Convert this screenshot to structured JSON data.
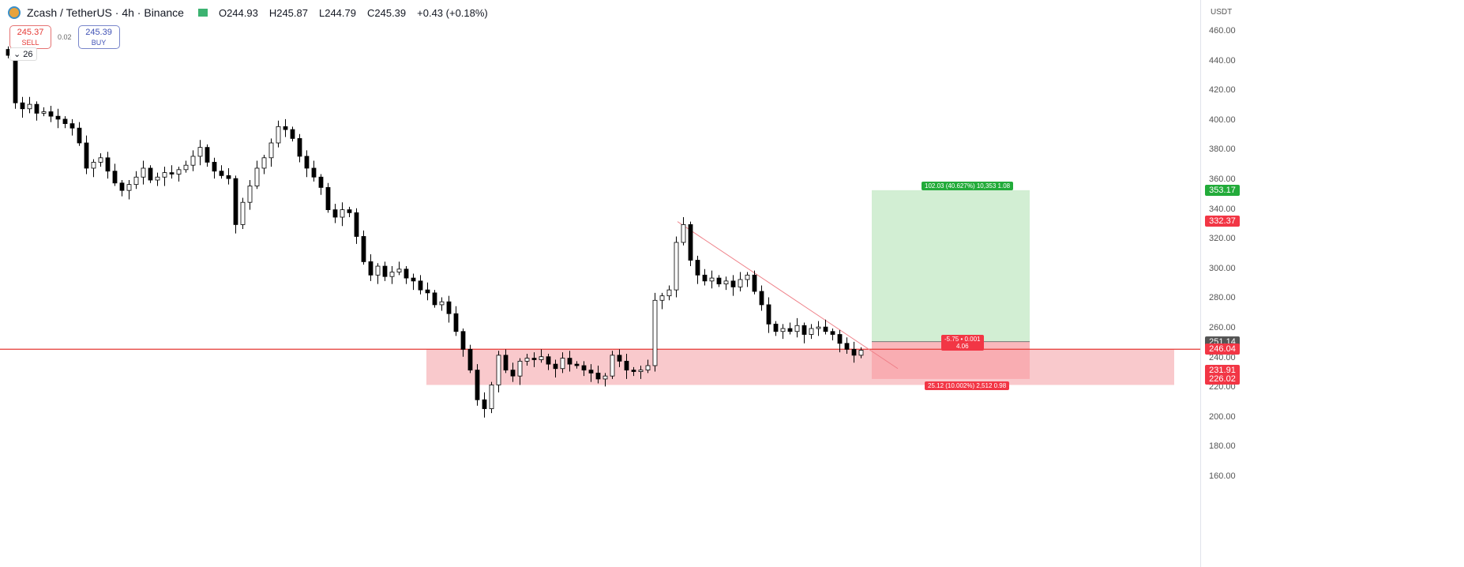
{
  "header": {
    "symbol": "Zcash / TetherUS · 4h · Binance",
    "open": "O244.93",
    "high": "H245.87",
    "low": "L244.79",
    "close": "C245.39",
    "change": "+0.43 (+0.18%)"
  },
  "trade": {
    "sell_price": "245.37",
    "sell_label": "SELL",
    "spread": "0.02",
    "buy_price": "245.39",
    "buy_label": "BUY"
  },
  "indicator": {
    "label": "26"
  },
  "axis": {
    "unit": "USDT"
  },
  "labels": {
    "target": {
      "value": "353.17",
      "color": "#22ab3a"
    },
    "high_mark": {
      "value": "332.37",
      "color": "#f23645"
    },
    "entry": {
      "value": "251.14",
      "color": "#555555"
    },
    "last": {
      "value": "246.04",
      "color": "#f23645"
    },
    "stop_a": {
      "value": "231.91",
      "color": "#f23645"
    },
    "stop_b": {
      "value": "226.02",
      "color": "#f23645"
    }
  },
  "position_tool": {
    "target_text": "102.03 (40.627%) 10,353 1.08",
    "center_text_1": "-5.75 • 0.001",
    "center_text_2": "4.06",
    "stop_text": "25.12 (10.002%) 2,512 0.98"
  },
  "chart_data": {
    "type": "candlestick",
    "title": "Zcash / TetherUS · 4h · Binance",
    "ylim": [
      160,
      460
    ],
    "yticks": [
      460,
      440,
      420,
      400,
      380,
      360,
      340,
      320,
      300,
      280,
      260,
      240,
      220,
      200,
      180,
      160
    ],
    "grid": false,
    "closes": [
      444,
      412,
      408,
      411,
      405,
      406,
      403,
      401,
      398,
      395,
      385,
      368,
      372,
      375,
      366,
      358,
      353,
      357,
      362,
      368,
      360,
      362,
      365,
      364,
      367,
      370,
      376,
      382,
      372,
      366,
      363,
      361,
      330,
      345,
      356,
      368,
      375,
      385,
      396,
      394,
      388,
      376,
      368,
      362,
      355,
      340,
      335,
      340,
      338,
      322,
      305,
      296,
      302,
      295,
      298,
      300,
      294,
      292,
      286,
      284,
      276,
      278,
      270,
      258,
      246,
      232,
      212,
      206,
      222,
      242,
      232,
      228,
      238,
      240,
      239,
      241,
      236,
      233,
      240,
      236,
      235,
      232,
      230,
      226,
      228,
      242,
      238,
      232,
      231,
      232,
      235,
      279,
      282,
      286,
      318,
      330,
      306,
      296,
      292,
      294,
      290,
      292,
      288,
      293,
      296,
      285,
      276,
      263,
      258,
      260,
      258,
      262,
      256,
      260,
      261,
      258,
      256,
      250,
      246,
      242,
      245.39
    ],
    "support_zone": [
      222,
      246
    ],
    "horizontal_line": 246.04,
    "trendline": {
      "from_price": 332,
      "to_price": 233
    },
    "long_position": {
      "entry": 251.14,
      "target": 353.17,
      "stop": 226.02
    },
    "colors": {
      "up": "#ffffff",
      "down": "#000000",
      "zone": "#f8bcbf",
      "target": "#d2eed3",
      "stop": "#f9a6ab",
      "line": "#e53935"
    }
  }
}
